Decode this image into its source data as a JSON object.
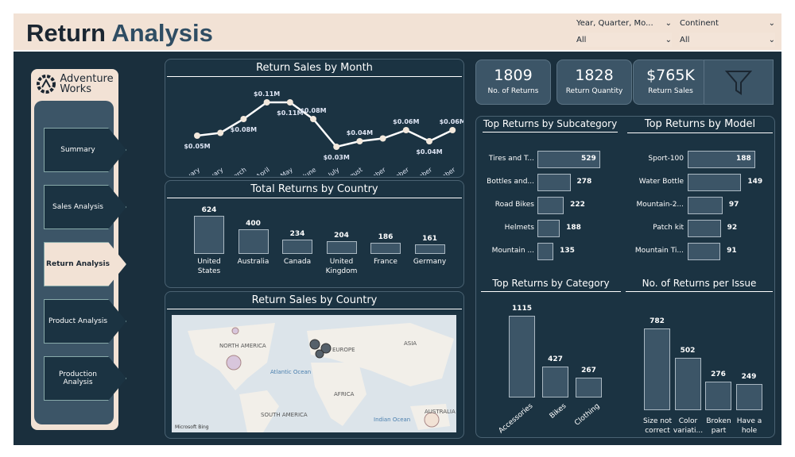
{
  "header": {
    "title_a": "Return",
    "title_b": "Analysis",
    "slicers": [
      {
        "label": "Year, Quarter, Mo...",
        "value": "All"
      },
      {
        "label": "Continent",
        "value": "All"
      }
    ]
  },
  "sidebar": {
    "logo_a": "Adventure",
    "logo_b": "Works",
    "items": [
      {
        "label": "Summary"
      },
      {
        "label": "Sales Analysis"
      },
      {
        "label": "Return Analysis",
        "active": true
      },
      {
        "label": "Product Analysis"
      },
      {
        "label": "Production Analysis"
      }
    ]
  },
  "kpis": [
    {
      "value": "1809",
      "label": "No. of Returns"
    },
    {
      "value": "1828",
      "label": "Return Quantity"
    },
    {
      "value": "$765K",
      "label": "Return Sales"
    }
  ],
  "chart_data": [
    {
      "type": "line",
      "title": "Return Sales by Month",
      "categories": [
        "January",
        "February",
        "March",
        "April",
        "May",
        "June",
        "July",
        "August",
        "September",
        "October",
        "November",
        "December"
      ],
      "values": [
        0.05,
        0.055,
        0.08,
        0.11,
        0.11,
        0.08,
        0.03,
        0.04,
        0.045,
        0.06,
        0.04,
        0.06
      ],
      "labels": [
        "$0.05M",
        "",
        "$0.08M",
        "$0.11M",
        "$0.11M",
        "$0.08M",
        "$0.03M",
        "$0.04M",
        "",
        "$0.06M",
        "$0.04M",
        "$0.06M"
      ],
      "unit": "$M"
    },
    {
      "type": "bar",
      "title": "Total Returns by Country",
      "categories": [
        "United States",
        "Australia",
        "Canada",
        "United Kingdom",
        "France",
        "Germany"
      ],
      "values": [
        624,
        400,
        234,
        204,
        186,
        161
      ]
    },
    {
      "type": "bar",
      "title": "Top Returns by Subcategory",
      "orientation": "horizontal",
      "categories": [
        "Tires and T...",
        "Bottles and...",
        "Road Bikes",
        "Helmets",
        "Mountain ..."
      ],
      "values": [
        529,
        278,
        222,
        188,
        135
      ]
    },
    {
      "type": "bar",
      "title": "Top Returns by Model",
      "orientation": "horizontal",
      "categories": [
        "Sport-100",
        "Water Bottle",
        "Mountain-2...",
        "Patch kit",
        "Mountain Ti..."
      ],
      "values": [
        188,
        149,
        97,
        92,
        91
      ]
    },
    {
      "type": "bar",
      "title": "Top Returns by Category",
      "categories": [
        "Accessories",
        "Bikes",
        "Clothing"
      ],
      "values": [
        1115,
        427,
        267
      ]
    },
    {
      "type": "bar",
      "title": "No. of Returns per Issue",
      "categories": [
        "Size not correct",
        "Color variati...",
        "Broken part",
        "Have a hole"
      ],
      "values": [
        782,
        502,
        276,
        249
      ]
    }
  ],
  "map": {
    "title": "Return Sales by Country",
    "labels": [
      "NORTH AMERICA",
      "EUROPE",
      "ASIA",
      "Atlantic Ocean",
      "AFRICA",
      "SOUTH AMERICA",
      "Indian Ocean",
      "AUSTRALIA"
    ],
    "attribution": "Microsoft Bing"
  }
}
